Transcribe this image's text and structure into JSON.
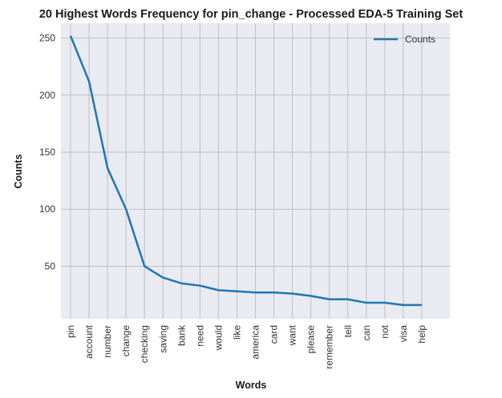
{
  "chart_data": {
    "type": "line",
    "title": "20 Highest Words Frequency for pin_change - Processed EDA-5 Training Set",
    "xlabel": "Words",
    "ylabel": "Counts",
    "categories": [
      "pin",
      "account",
      "number",
      "change",
      "checking",
      "saving",
      "bank",
      "need",
      "would",
      "like",
      "america",
      "card",
      "want",
      "please",
      "remember",
      "tell",
      "can",
      "not",
      "visa",
      "help"
    ],
    "series": [
      {
        "name": "Counts",
        "values": [
          252,
          212,
          136,
          100,
          50,
          40,
          35,
          33,
          29,
          28,
          27,
          27,
          26,
          24,
          21,
          21,
          18,
          18,
          16,
          16
        ]
      }
    ],
    "ylim": [
      4,
      263
    ],
    "yticks": [
      50,
      100,
      150,
      200,
      250
    ],
    "grid": true,
    "legend": "top-right",
    "colors": {
      "line": "#1f77b4",
      "plot_bg": "#eaeaf2",
      "grid": "#c0c0c0"
    }
  }
}
